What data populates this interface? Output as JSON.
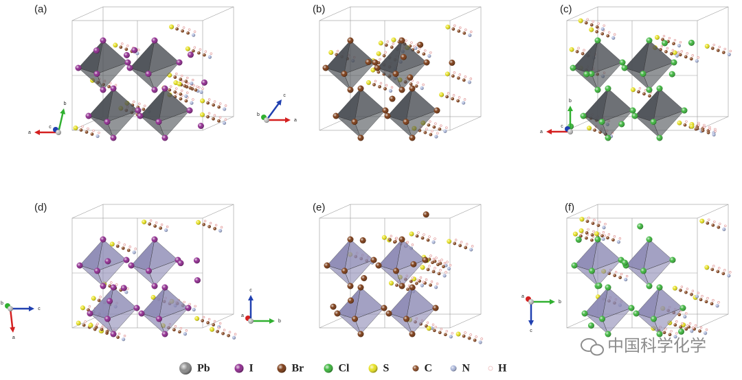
{
  "panels": [
    {
      "label": "(a)",
      "axes": [
        "a",
        "b",
        "c"
      ]
    },
    {
      "label": "(b)",
      "axes": [
        "a",
        "b",
        "c"
      ]
    },
    {
      "label": "(c)",
      "axes": [
        "a",
        "b",
        "c"
      ]
    },
    {
      "label": "(d)",
      "axes": [
        "a",
        "b",
        "c"
      ]
    },
    {
      "label": "(e)",
      "axes": [
        "a",
        "b",
        "c"
      ]
    },
    {
      "label": "(f)",
      "axes": [
        "a",
        "b",
        "c"
      ]
    }
  ],
  "legend": [
    {
      "label": "Pb",
      "color": "#8a8a8a"
    },
    {
      "label": "I",
      "color": "#8e2a8e"
    },
    {
      "label": "Br",
      "color": "#7a3a14"
    },
    {
      "label": "Cl",
      "color": "#3cb43c"
    },
    {
      "label": "S",
      "color": "#e6e020"
    },
    {
      "label": "C",
      "color": "#8a4a24"
    },
    {
      "label": "N",
      "color": "#a8b4d8"
    },
    {
      "label": "H",
      "color": "#f0c8c8"
    }
  ],
  "watermark": "中国科学化学"
}
